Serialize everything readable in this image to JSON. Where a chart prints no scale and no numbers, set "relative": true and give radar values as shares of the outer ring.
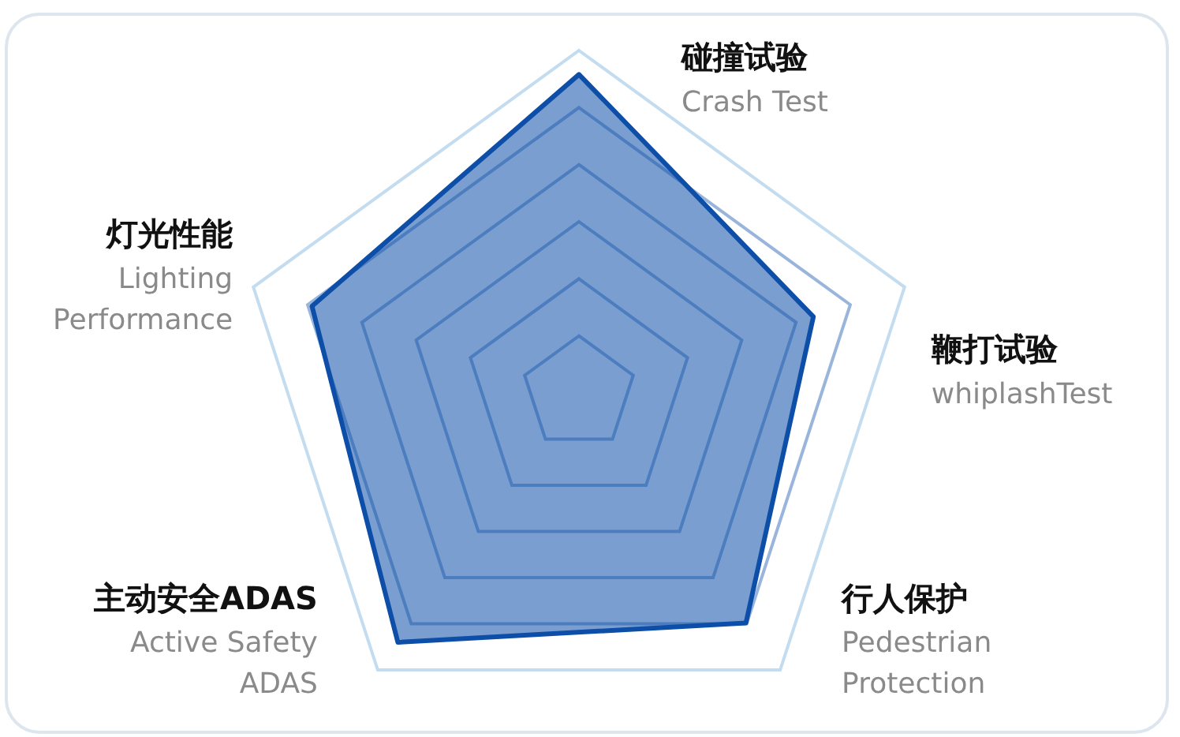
{
  "chart_data": {
    "type": "radar",
    "relative": true,
    "categories": [
      "碰撞试验\nCrash Test",
      "鞭打试验\nwhiplashTest",
      "行人保护\nPedestrian\nProtection",
      "主动安全ADAS\nActive Safety\nADAS",
      "灯光性能\nLighting\nPerformance"
    ],
    "series": [
      {
        "color": "#0d4fa8",
        "values": [
          0.93,
          0.72,
          0.83,
          0.9,
          0.82
        ]
      }
    ]
  }
}
